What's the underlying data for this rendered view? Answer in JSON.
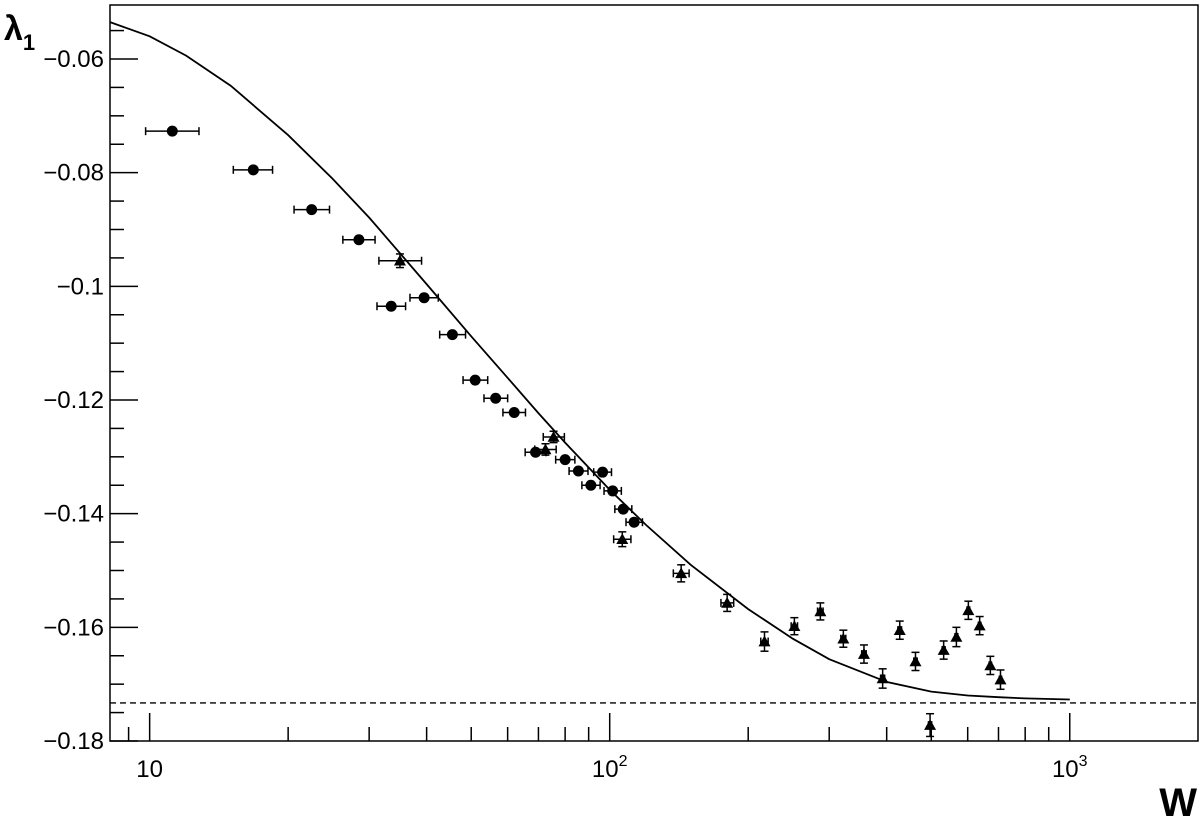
{
  "chart_data": {
    "type": "scatter",
    "title": "",
    "xlabel": "W",
    "ylabel": "λ",
    "ylabel_subscript": "1",
    "x_scale": "log",
    "xlim": [
      8.2,
      1900
    ],
    "ylim": [
      -0.18,
      -0.0505
    ],
    "grid": false,
    "legend": "none",
    "x_tick_labels": [
      {
        "value": 10,
        "base": "10",
        "exp": ""
      },
      {
        "value": 100,
        "base": "10",
        "exp": "2"
      },
      {
        "value": 1000,
        "base": "10",
        "exp": "3"
      }
    ],
    "y_ticks": [
      -0.06,
      -0.08,
      -0.1,
      -0.12,
      -0.14,
      -0.16,
      -0.18
    ],
    "y_tick_labels": [
      "−0.06",
      "−0.08",
      "−0.1",
      "−0.12",
      "−0.14",
      "−0.16",
      "−0.18"
    ],
    "series": [
      {
        "marker": "circle",
        "points": [
          {
            "x": 11.2,
            "y": -0.0727,
            "xerr_lo": 1.4,
            "xerr_hi": 1.6
          },
          {
            "x": 16.8,
            "y": -0.0795,
            "xerr_lo": 1.6,
            "xerr_hi": 1.7
          },
          {
            "x": 22.5,
            "y": -0.0865,
            "xerr_lo": 1.9,
            "xerr_hi": 2.1
          },
          {
            "x": 28.5,
            "y": -0.0918,
            "xerr_lo": 2.2,
            "xerr_hi": 2.4
          },
          {
            "x": 33.5,
            "y": -0.1035,
            "xerr_lo": 2.3,
            "xerr_hi": 2.5
          },
          {
            "x": 39.5,
            "y": -0.102,
            "xerr_lo": 2.7,
            "xerr_hi": 2.9
          },
          {
            "x": 45.5,
            "y": -0.1085,
            "xerr_lo": 2.8,
            "xerr_hi": 3.1
          },
          {
            "x": 51.0,
            "y": -0.1165,
            "xerr_lo": 3.0,
            "xerr_hi": 3.3
          },
          {
            "x": 56.5,
            "y": -0.1197,
            "xerr_lo": 3.2,
            "xerr_hi": 3.5
          },
          {
            "x": 62.0,
            "y": -0.1222,
            "xerr_lo": 3.4,
            "xerr_hi": 3.6
          },
          {
            "x": 69.0,
            "y": -0.1292,
            "xerr_lo": 3.5,
            "xerr_hi": 3.7
          },
          {
            "x": 80.0,
            "y": -0.1305,
            "xerr_lo": 3.7,
            "xerr_hi": 4.0
          },
          {
            "x": 85.5,
            "y": -0.1325,
            "xerr_lo": 3.9,
            "xerr_hi": 4.2
          },
          {
            "x": 91.0,
            "y": -0.135,
            "xerr_lo": 4.0,
            "xerr_hi": 4.3
          },
          {
            "x": 96.5,
            "y": -0.1327,
            "xerr_lo": 4.2,
            "xerr_hi": 4.4
          },
          {
            "x": 101.5,
            "y": -0.136,
            "xerr_lo": 4.3,
            "xerr_hi": 4.5
          },
          {
            "x": 107.0,
            "y": -0.1392,
            "xerr_lo": 4.4,
            "xerr_hi": 4.7
          },
          {
            "x": 113.0,
            "y": -0.1415,
            "xerr_lo": 4.5,
            "xerr_hi": 4.8
          }
        ]
      },
      {
        "marker": "triangle",
        "points": [
          {
            "x": 35.0,
            "y": -0.0955,
            "xerr_lo": 3.5,
            "xerr_hi": 4.0,
            "yerr": 0.0012
          },
          {
            "x": 72.5,
            "y": -0.1287,
            "xerr_lo": 3.8,
            "xerr_hi": 4.0,
            "yerr": 0.001
          },
          {
            "x": 75.5,
            "y": -0.1265,
            "xerr_lo": 3.8,
            "xerr_hi": 4.2,
            "yerr": 0.001
          },
          {
            "x": 106.5,
            "y": -0.1445,
            "xerr_lo": 4.5,
            "xerr_hi": 4.7,
            "yerr": 0.0013
          },
          {
            "x": 143.0,
            "y": -0.1505,
            "xerr_lo": 5.5,
            "xerr_hi": 5.8,
            "yerr": 0.0015
          },
          {
            "x": 180.0,
            "y": -0.1557,
            "xerr_lo": 5.5,
            "xerr_hi": 6.0,
            "yerr": 0.0015
          },
          {
            "x": 217.0,
            "y": -0.1625,
            "xerr_lo": 4.0,
            "xerr_hi": 4.0,
            "yerr": 0.0017
          },
          {
            "x": 252.0,
            "y": -0.1598,
            "xerr_lo": 4.0,
            "xerr_hi": 4.0,
            "yerr": 0.0015
          },
          {
            "x": 287.0,
            "y": -0.1572,
            "xerr_lo": 4.0,
            "xerr_hi": 4.0,
            "yerr": 0.0015
          },
          {
            "x": 322.0,
            "y": -0.162,
            "xerr_lo": 4.0,
            "xerr_hi": 4.0,
            "yerr": 0.0015
          },
          {
            "x": 357.0,
            "y": -0.1647,
            "xerr_lo": 4.0,
            "xerr_hi": 4.0,
            "yerr": 0.0016
          },
          {
            "x": 392.0,
            "y": -0.169,
            "xerr_lo": 4.0,
            "xerr_hi": 4.0,
            "yerr": 0.0017
          },
          {
            "x": 427.0,
            "y": -0.1605,
            "xerr_lo": 4.0,
            "xerr_hi": 4.0,
            "yerr": 0.0016
          },
          {
            "x": 462.0,
            "y": -0.166,
            "xerr_lo": 4.0,
            "xerr_hi": 4.0,
            "yerr": 0.0016
          },
          {
            "x": 497.0,
            "y": -0.1772,
            "xerr_lo": 4.0,
            "xerr_hi": 4.0,
            "yerr": 0.002
          },
          {
            "x": 532.0,
            "y": -0.164,
            "xerr_lo": 4.0,
            "xerr_hi": 4.0,
            "yerr": 0.0016
          },
          {
            "x": 567.0,
            "y": -0.1617,
            "xerr_lo": 4.0,
            "xerr_hi": 4.0,
            "yerr": 0.0017
          },
          {
            "x": 602.0,
            "y": -0.157,
            "xerr_lo": 4.0,
            "xerr_hi": 4.0,
            "yerr": 0.0016
          },
          {
            "x": 637.0,
            "y": -0.1597,
            "xerr_lo": 4.0,
            "xerr_hi": 4.0,
            "yerr": 0.0016
          },
          {
            "x": 672.0,
            "y": -0.1667,
            "xerr_lo": 4.0,
            "xerr_hi": 4.0,
            "yerr": 0.0016
          },
          {
            "x": 707.0,
            "y": -0.1692,
            "xerr_lo": 4.0,
            "xerr_hi": 4.0,
            "yerr": 0.0017
          }
        ]
      }
    ],
    "fit_curve": {
      "type": "line",
      "x": [
        8.2,
        10,
        12,
        15,
        20,
        25,
        30,
        40,
        50,
        60,
        70,
        80,
        100,
        120,
        150,
        200,
        250,
        300,
        400,
        500,
        600,
        700,
        800,
        1000
      ],
      "y": [
        -0.0535,
        -0.056,
        -0.0594,
        -0.0647,
        -0.0734,
        -0.0811,
        -0.0879,
        -0.0996,
        -0.1088,
        -0.1161,
        -0.1223,
        -0.1275,
        -0.1358,
        -0.142,
        -0.149,
        -0.1568,
        -0.162,
        -0.1656,
        -0.1696,
        -0.1713,
        -0.172,
        -0.1723,
        -0.1725,
        -0.1727
      ]
    },
    "reference_line": {
      "y": -0.1733,
      "style": "dashed"
    }
  }
}
